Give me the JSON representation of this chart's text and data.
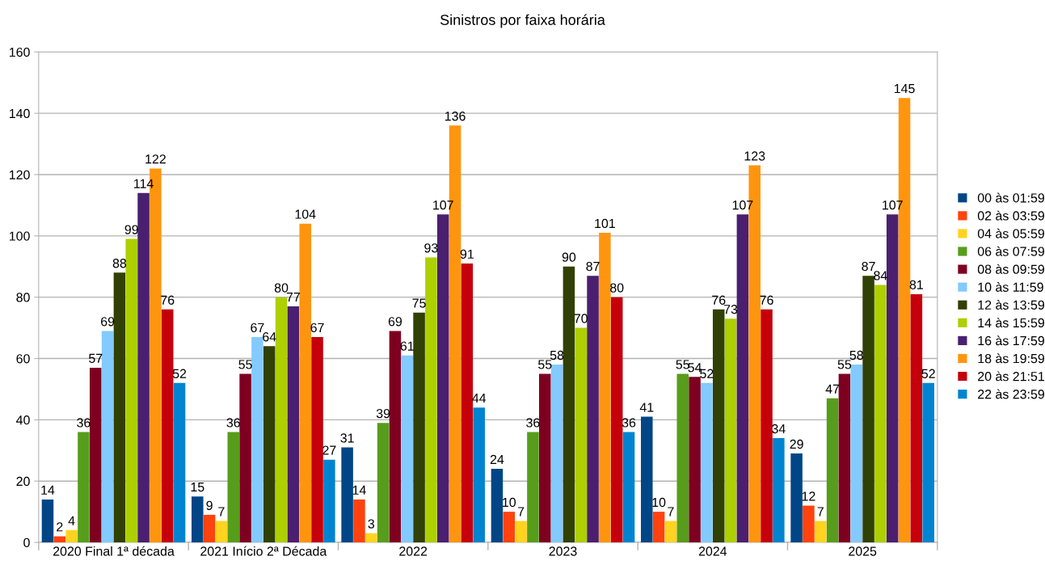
{
  "chart_data": {
    "type": "bar",
    "title": "Sinistros por faixa horária",
    "categories": [
      "2020 Final 1ª década",
      "2021 Início 2ª Década",
      "2022",
      "2023",
      "2024",
      "2025"
    ],
    "series": [
      {
        "name": "00 às 01:59",
        "color": "#004586",
        "values": [
          14,
          15,
          31,
          24,
          41,
          29
        ]
      },
      {
        "name": "02 às 03:59",
        "color": "#ff420e",
        "values": [
          2,
          9,
          14,
          10,
          10,
          12
        ]
      },
      {
        "name": "04 às 05:59",
        "color": "#ffd320",
        "values": [
          4,
          7,
          3,
          7,
          7,
          7
        ]
      },
      {
        "name": "06 às 07:59",
        "color": "#579d1c",
        "values": [
          36,
          36,
          39,
          36,
          55,
          47
        ]
      },
      {
        "name": "08 às 09:59",
        "color": "#7e0021",
        "values": [
          57,
          55,
          69,
          55,
          54,
          55
        ]
      },
      {
        "name": "10 às 11:59",
        "color": "#83caff",
        "values": [
          69,
          67,
          61,
          58,
          52,
          58
        ]
      },
      {
        "name": "12 às 13:59",
        "color": "#314004",
        "values": [
          88,
          64,
          75,
          90,
          76,
          87
        ]
      },
      {
        "name": "14 às 15:59",
        "color": "#aecf00",
        "values": [
          99,
          80,
          93,
          70,
          73,
          84
        ]
      },
      {
        "name": "16 às 17:59",
        "color": "#4b1f6f",
        "values": [
          114,
          77,
          107,
          87,
          107,
          107
        ]
      },
      {
        "name": "18 às 19:59",
        "color": "#ff950e",
        "values": [
          122,
          104,
          136,
          101,
          123,
          145
        ]
      },
      {
        "name": "20 às 21:51",
        "color": "#c5000b",
        "values": [
          76,
          67,
          91,
          80,
          76,
          81
        ]
      },
      {
        "name": "22 às 23:59",
        "color": "#0084d1",
        "values": [
          52,
          27,
          44,
          36,
          34,
          52
        ]
      }
    ],
    "ylim": [
      0,
      160
    ],
    "yticks": [
      0,
      20,
      40,
      60,
      80,
      100,
      120,
      140,
      160
    ],
    "grid": "y",
    "legend": "right",
    "data_labels": true
  }
}
